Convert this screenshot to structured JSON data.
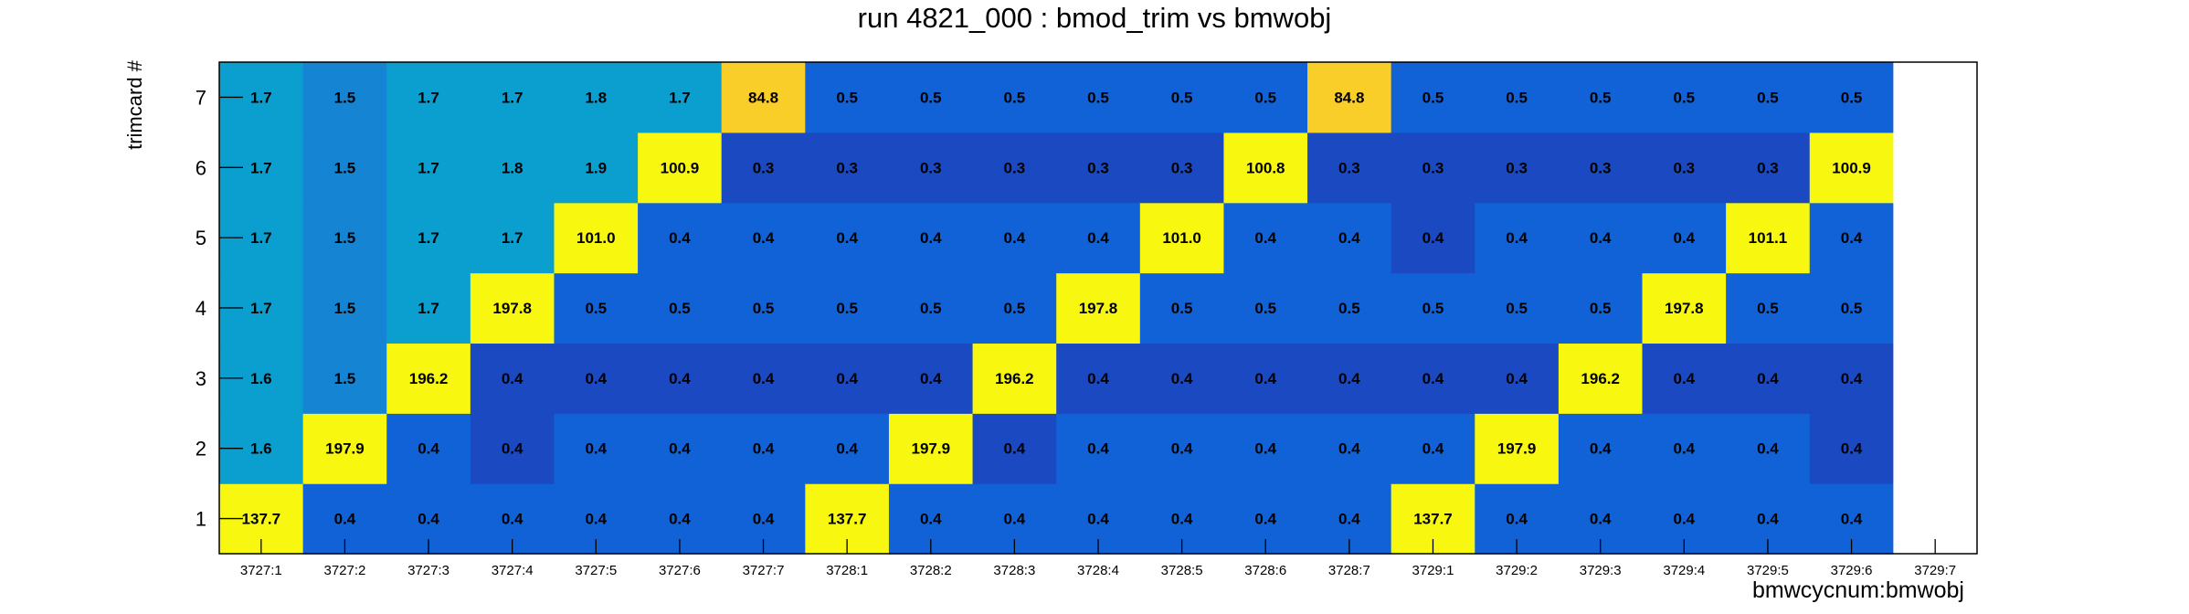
{
  "chart_data": {
    "type": "heatmap",
    "title": "run 4821_000 : bmod_trim vs bmwobj",
    "xlabel": "bmwcycnum:bmwobj",
    "ylabel": "trimcard #",
    "x_categories": [
      "3727:1",
      "3727:2",
      "3727:3",
      "3727:4",
      "3727:5",
      "3727:6",
      "3727:7",
      "3728:1",
      "3728:2",
      "3728:3",
      "3728:4",
      "3728:5",
      "3728:6",
      "3728:7",
      "3729:1",
      "3729:2",
      "3729:3",
      "3729:4",
      "3729:5",
      "3729:6",
      "3729:7"
    ],
    "y_categories": [
      "1",
      "2",
      "3",
      "4",
      "5",
      "6",
      "7"
    ],
    "values": [
      [
        137.7,
        1.6,
        1.6,
        1.7,
        1.7,
        1.7,
        1.7
      ],
      [
        0.4,
        197.9,
        1.5,
        1.5,
        1.5,
        1.5,
        1.5
      ],
      [
        0.4,
        0.4,
        196.2,
        1.7,
        1.7,
        1.7,
        1.7
      ],
      [
        0.4,
        0.4,
        0.4,
        197.8,
        1.7,
        1.8,
        1.7
      ],
      [
        0.4,
        0.4,
        0.4,
        0.5,
        101.0,
        1.9,
        1.8
      ],
      [
        0.4,
        0.4,
        0.4,
        0.5,
        0.4,
        100.9,
        1.7
      ],
      [
        0.4,
        0.4,
        0.4,
        0.5,
        0.4,
        0.3,
        84.8
      ],
      [
        137.7,
        0.4,
        0.4,
        0.5,
        0.4,
        0.3,
        0.5
      ],
      [
        0.4,
        197.9,
        0.4,
        0.5,
        0.4,
        0.3,
        0.5
      ],
      [
        0.4,
        0.4,
        196.2,
        0.5,
        0.4,
        0.3,
        0.5
      ],
      [
        0.4,
        0.4,
        0.4,
        197.8,
        0.4,
        0.3,
        0.5
      ],
      [
        0.4,
        0.4,
        0.4,
        0.5,
        101.0,
        0.3,
        0.5
      ],
      [
        0.4,
        0.4,
        0.4,
        0.5,
        0.4,
        100.8,
        0.5
      ],
      [
        0.4,
        0.4,
        0.4,
        0.5,
        0.4,
        0.3,
        84.8
      ],
      [
        137.7,
        0.4,
        0.4,
        0.5,
        0.4,
        0.3,
        0.5
      ],
      [
        0.4,
        197.9,
        0.4,
        0.5,
        0.4,
        0.3,
        0.5
      ],
      [
        0.4,
        0.4,
        196.2,
        0.5,
        0.4,
        0.3,
        0.5
      ],
      [
        0.4,
        0.4,
        0.4,
        197.8,
        0.4,
        0.3,
        0.5
      ],
      [
        0.4,
        0.4,
        0.4,
        0.5,
        101.1,
        0.3,
        0.5
      ],
      [
        0.4,
        0.4,
        0.4,
        0.5,
        0.4,
        100.9,
        0.5
      ],
      [
        null,
        null,
        null,
        null,
        null,
        null,
        null
      ]
    ],
    "value_labels": [
      [
        "137.7",
        "1.6",
        "1.6",
        "1.7",
        "1.7",
        "1.7",
        "1.7"
      ],
      [
        "0.4",
        "197.9",
        "1.5",
        "1.5",
        "1.5",
        "1.5",
        "1.5"
      ],
      [
        "0.4",
        "0.4",
        "196.2",
        "1.7",
        "1.7",
        "1.7",
        "1.7"
      ],
      [
        "0.4",
        "0.4",
        "0.4",
        "197.8",
        "1.7",
        "1.8",
        "1.7"
      ],
      [
        "0.4",
        "0.4",
        "0.4",
        "0.5",
        "101.0",
        "1.9",
        "1.8"
      ],
      [
        "0.4",
        "0.4",
        "0.4",
        "0.5",
        "0.4",
        "100.9",
        "1.7"
      ],
      [
        "0.4",
        "0.4",
        "0.4",
        "0.5",
        "0.4",
        "0.3",
        "84.8"
      ],
      [
        "137.7",
        "0.4",
        "0.4",
        "0.5",
        "0.4",
        "0.3",
        "0.5"
      ],
      [
        "0.4",
        "197.9",
        "0.4",
        "0.5",
        "0.4",
        "0.3",
        "0.5"
      ],
      [
        "0.4",
        "0.4",
        "196.2",
        "0.5",
        "0.4",
        "0.3",
        "0.5"
      ],
      [
        "0.4",
        "0.4",
        "0.4",
        "197.8",
        "0.4",
        "0.3",
        "0.5"
      ],
      [
        "0.4",
        "0.4",
        "0.4",
        "0.5",
        "101.0",
        "0.3",
        "0.5"
      ],
      [
        "0.4",
        "0.4",
        "0.4",
        "0.5",
        "0.4",
        "100.8",
        "0.5"
      ],
      [
        "0.4",
        "0.4",
        "0.4",
        "0.5",
        "0.4",
        "0.3",
        "84.8"
      ],
      [
        "137.7",
        "0.4",
        "0.4",
        "0.5",
        "0.4",
        "0.3",
        "0.5"
      ],
      [
        "0.4",
        "197.9",
        "0.4",
        "0.5",
        "0.4",
        "0.3",
        "0.5"
      ],
      [
        "0.4",
        "0.4",
        "196.2",
        "0.5",
        "0.4",
        "0.3",
        "0.5"
      ],
      [
        "0.4",
        "0.4",
        "0.4",
        "197.8",
        "0.4",
        "0.3",
        "0.5"
      ],
      [
        "0.4",
        "0.4",
        "0.4",
        "0.5",
        "101.1",
        "0.3",
        "0.5"
      ],
      [
        "0.4",
        "0.4",
        "0.4",
        "0.5",
        "0.4",
        "100.9",
        "0.5"
      ],
      [
        null,
        null,
        null,
        null,
        null,
        null,
        null
      ]
    ],
    "colormap": "ROOT kBird (blue to yellow)",
    "colors": {
      "low": "#1a49c2",
      "mid_low": "#1162d6",
      "teal": "#0a9fcf",
      "mid": "#1584d2",
      "orange": "#f9ce28",
      "high": "#f7f70f",
      "text": "#000000",
      "empty": "#ffffff"
    },
    "grid": false,
    "legend": "none"
  }
}
